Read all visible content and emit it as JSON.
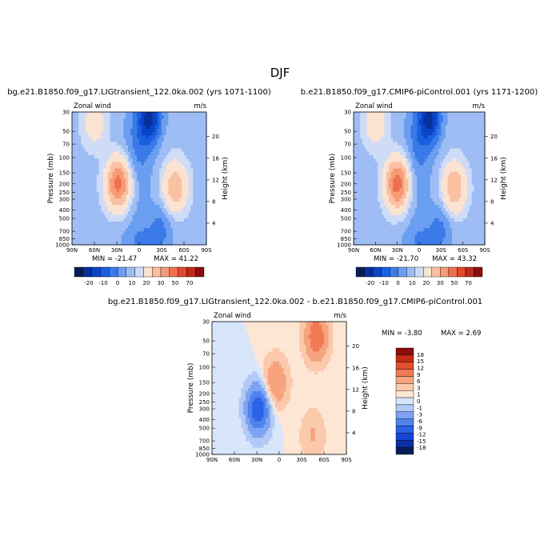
{
  "season_title": "DJF",
  "colors": {
    "ramp": [
      "#081d58",
      "#08309b",
      "#0b44c8",
      "#1a5fe0",
      "#3b7ae8",
      "#6a9ef0",
      "#9ebdf4",
      "#cfdcf7",
      "#fbe3d2",
      "#f9c1a2",
      "#f69b77",
      "#ef6f4c",
      "#df4a2e",
      "#c02a1a",
      "#8c0d0d"
    ],
    "diff_ramp": [
      "#081d58",
      "#0b2fa8",
      "#1546d6",
      "#2a62e8",
      "#4f83ee",
      "#7ea3f2",
      "#b3c9f6",
      "#d8e6fb",
      "#fde6d4",
      "#fbc9ab",
      "#f7a37f",
      "#f07a55",
      "#e2502f",
      "#c42a16",
      "#8c0d0d"
    ]
  },
  "chart_data": [
    {
      "type": "heatmap",
      "title": "bg.e21.B1850.f09_g17.LIGtransient_122.0ka.002 (yrs 1071-1100)",
      "left_string": "Zonal wind",
      "right_string": "m/s",
      "ylabel": "Pressure (mb)",
      "ylabel_right": "Height (km)",
      "x_ticks": [
        "90N",
        "60N",
        "30N",
        "0",
        "30S",
        "60S",
        "90S"
      ],
      "y_ticks": [
        "30",
        "50",
        "70",
        "100",
        "150",
        "200",
        "250",
        "300",
        "400",
        "500",
        "700",
        "850",
        "1000"
      ],
      "y_right_ticks": [
        "20",
        "16",
        "12",
        "8",
        "4"
      ],
      "min_label": "MIN = -21.47",
      "max_label": "MAX = 41.22",
      "colorbar_labels": [
        "-20",
        "-10",
        "0",
        "10",
        "20",
        "30",
        "50",
        "70"
      ],
      "features": [
        {
          "lat": 60,
          "p": 40,
          "value": 12
        },
        {
          "lat": 28,
          "p": 200,
          "value": 41.22
        },
        {
          "lat": -15,
          "p": 35,
          "value": -21.47
        },
        {
          "lat": -48,
          "p": 220,
          "value": 25
        },
        {
          "lat": -30,
          "p": 600,
          "value": -8
        }
      ]
    },
    {
      "type": "heatmap",
      "title": "b.e21.B1850.f09_g17.CMIP6-piControl.001 (yrs 1171-1200)",
      "left_string": "Zonal wind",
      "right_string": "m/s",
      "ylabel": "Pressure (mb)",
      "ylabel_right": "Height (km)",
      "x_ticks": [
        "90N",
        "60N",
        "30N",
        "0",
        "30S",
        "60S",
        "90S"
      ],
      "y_ticks": [
        "30",
        "50",
        "70",
        "100",
        "150",
        "200",
        "250",
        "300",
        "400",
        "500",
        "700",
        "850",
        "1000"
      ],
      "y_right_ticks": [
        "20",
        "16",
        "12",
        "8",
        "4"
      ],
      "min_label": "MIN = -21.70",
      "max_label": "MAX = 43.32",
      "colorbar_labels": [
        "-20",
        "-10",
        "0",
        "10",
        "20",
        "30",
        "50",
        "70"
      ],
      "features": [
        {
          "lat": 60,
          "p": 40,
          "value": 13
        },
        {
          "lat": 30,
          "p": 200,
          "value": 43.32
        },
        {
          "lat": -15,
          "p": 35,
          "value": -21.7
        },
        {
          "lat": -48,
          "p": 220,
          "value": 26
        },
        {
          "lat": -30,
          "p": 600,
          "value": -8
        }
      ]
    },
    {
      "type": "heatmap",
      "title": "bg.e21.B1850.f09_g17.LIGtransient_122.0ka.002 - b.e21.B1850.f09_g17.CMIP6-piControl.001",
      "left_string": "Zonal wind",
      "right_string": "m/s",
      "ylabel": "Pressure (mb)",
      "ylabel_right": "Height (km)",
      "x_ticks": [
        "90N",
        "60N",
        "30N",
        "0",
        "30S",
        "60S",
        "90S"
      ],
      "y_ticks": [
        "30",
        "50",
        "70",
        "100",
        "150",
        "200",
        "250",
        "300",
        "400",
        "500",
        "700",
        "850",
        "1000"
      ],
      "y_right_ticks": [
        "20",
        "16",
        "12",
        "8",
        "4"
      ],
      "min_label": "MIN = -3.80",
      "max_label": "MAX = 2.69",
      "colorbar_labels": [
        "18",
        "15",
        "12",
        "9",
        "6",
        "3",
        "1",
        "0",
        "-1",
        "-3",
        "-6",
        "-9",
        "-12",
        "-15",
        "-18"
      ],
      "features": [
        {
          "lat": 28,
          "p": 300,
          "value": -3.8
        },
        {
          "lat": -50,
          "p": 45,
          "value": 2.69
        },
        {
          "lat": 5,
          "p": 150,
          "value": 2
        },
        {
          "lat": -45,
          "p": 600,
          "value": 1
        }
      ]
    }
  ]
}
